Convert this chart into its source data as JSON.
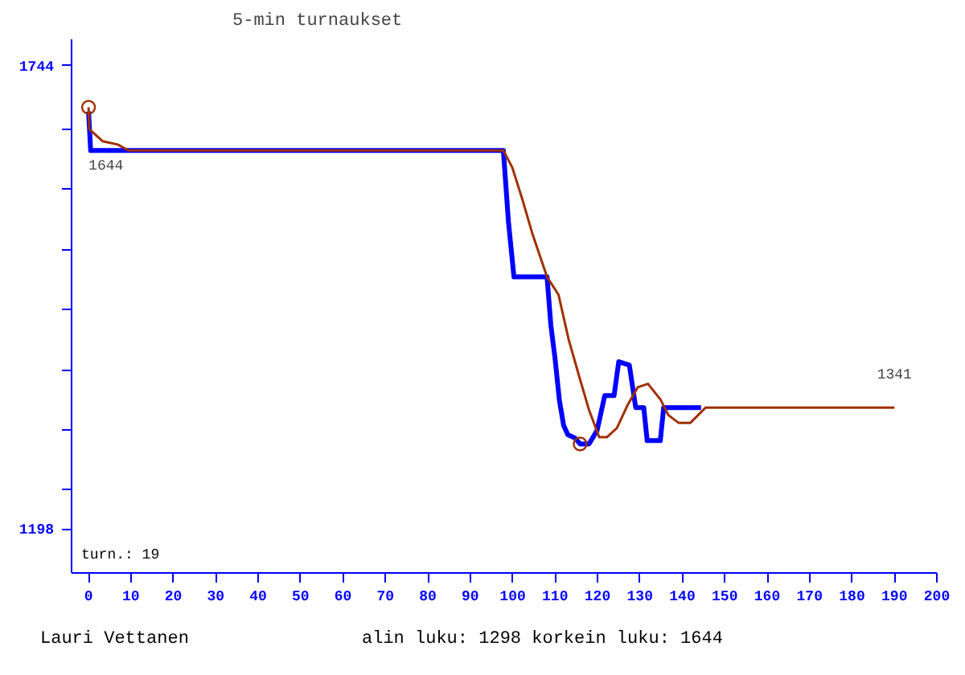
{
  "chart_data": {
    "type": "line",
    "title": "5-min turnaukset",
    "xlim": [
      -4,
      200
    ],
    "xticks": [
      0,
      10,
      20,
      30,
      40,
      50,
      60,
      70,
      80,
      90,
      100,
      110,
      120,
      130,
      140,
      150,
      160,
      170,
      180,
      190,
      200
    ],
    "ylim": [
      1146,
      1775
    ],
    "yticks": [
      1744,
      {
        "value": 1669,
        "label": null
      },
      {
        "value": 1598,
        "label": null
      },
      {
        "value": 1527,
        "label": null
      },
      {
        "value": 1456,
        "label": null
      },
      {
        "value": 1385,
        "label": null
      },
      {
        "value": 1314,
        "label": null
      },
      {
        "value": 1244,
        "label": null
      },
      1198
    ],
    "grid": false,
    "line_style": "solid",
    "series": [
      {
        "color": "#0000ff",
        "x": [
          0,
          0.5,
          97.8,
          99,
          100.3,
          108.1,
          109,
          110,
          111,
          112,
          113,
          114.7,
          115.9,
          118,
          119.9,
          121.7,
          123.9,
          125,
          127.5,
          129,
          130.9,
          131.7,
          134.8,
          135.6,
          144.4
        ],
        "values": [
          1690,
          1644,
          1644,
          1560,
          1495,
          1495,
          1438,
          1398,
          1350,
          1320,
          1309,
          1305,
          1298,
          1298,
          1314,
          1355,
          1355,
          1395,
          1391,
          1341,
          1341,
          1302,
          1302,
          1341,
          1341
        ]
      },
      {
        "color": "#a03000",
        "x": [
          0,
          0.2,
          3.3,
          6.9,
          9.4,
          97.8,
          99.9,
          102.3,
          104.7,
          108.1,
          110.8,
          113.2,
          115.6,
          118,
          120.4,
          122.2,
          124.6,
          127.1,
          129.5,
          131.9,
          134.9,
          136.7,
          139.1,
          141.9,
          145.5,
          190
        ],
        "values": [
          1695,
          1669,
          1655,
          1651,
          1644,
          1644,
          1624,
          1586,
          1545,
          1495,
          1474,
          1421,
          1379,
          1338,
          1306,
          1306,
          1317,
          1344,
          1365,
          1369,
          1350,
          1332,
          1323,
          1323,
          1341,
          1341
        ]
      },
      {
        "color": "#a03000",
        "type": "scatter",
        "marker": "circle",
        "x": [
          0,
          115.9
        ],
        "values": [
          1695,
          1298
        ]
      }
    ],
    "annotations": [
      {
        "text": "1644",
        "x": 0,
        "y": 1644
      },
      {
        "text": "1341",
        "x": 190,
        "y": 1341
      },
      "turn.: 19",
      "Lauri Vettanen",
      "alin luku: 1298  korkein luku: 1644"
    ]
  }
}
